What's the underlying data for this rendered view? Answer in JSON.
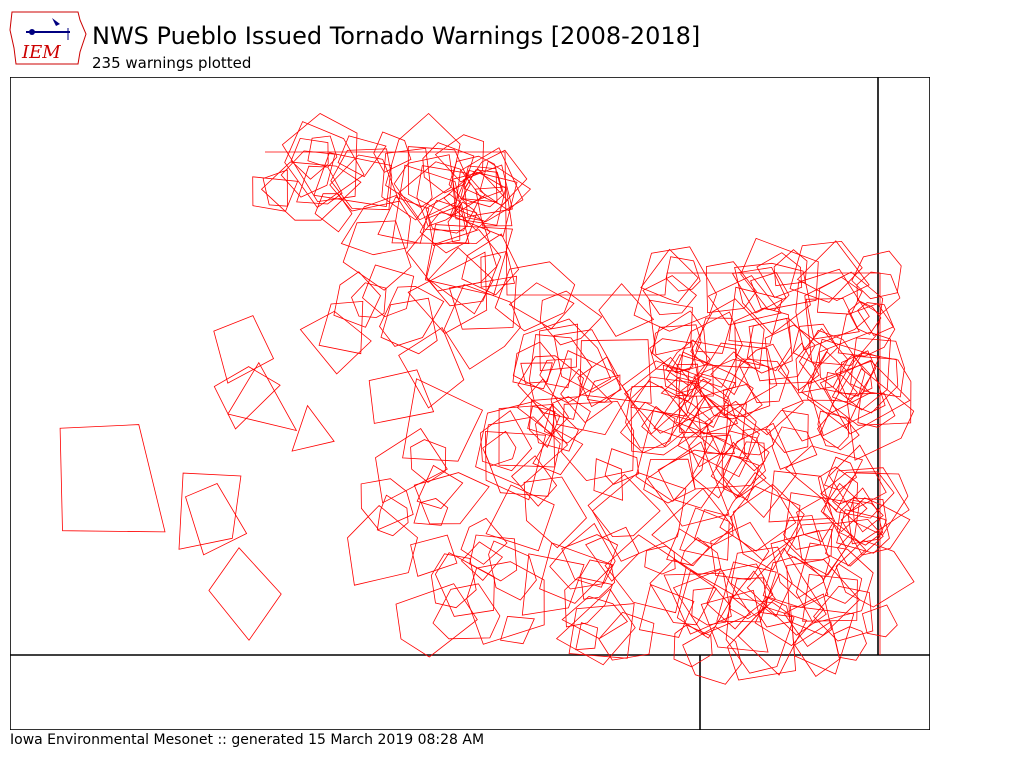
{
  "header": {
    "title": "NWS Pueblo Issued Tornado Warnings [2008-2018]",
    "subtitle": "235 warnings plotted",
    "logo_text": "IEM"
  },
  "footer": {
    "text": "Iowa Environmental Mesonet :: generated 15 March 2019 08:28 AM"
  },
  "map": {
    "warning_count": 235,
    "polygon_color": "#ff0000",
    "border_color": "#000000"
  }
}
